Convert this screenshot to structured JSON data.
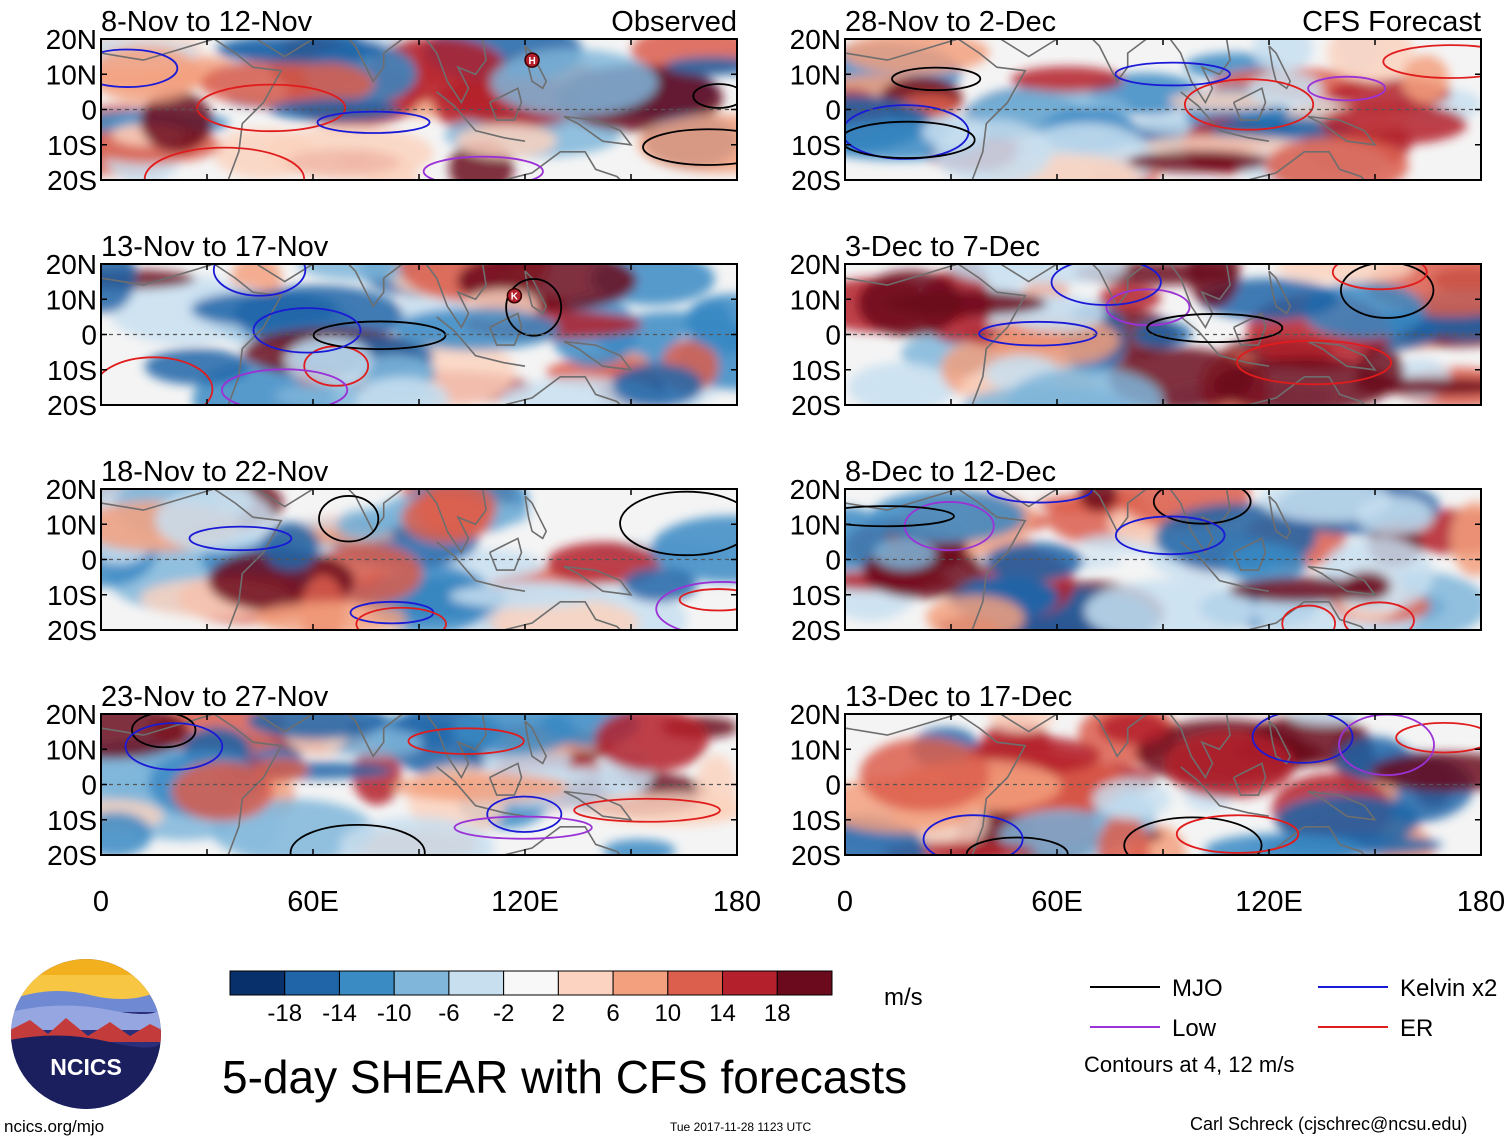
{
  "title": "5-day SHEAR with CFS forecasts",
  "units": "m/s",
  "logo_text": "NCICS",
  "credit_left": "ncics.org/mjo",
  "credit_date": "Tue 2017-11-28 1123 UTC",
  "credit_right": "Carl Schreck (cjschrec@ncsu.edu)",
  "contour_note": "Contours at 4, 12 m/s",
  "chart_data": {
    "type": "heatmap",
    "variable": "Vertical wind shear anomaly",
    "x_range": [
      0,
      180
    ],
    "y_range": [
      -20,
      20
    ],
    "xticks": [
      "0",
      "60E",
      "120E",
      "180"
    ],
    "yticks": [
      "20N",
      "10N",
      "0",
      "10S",
      "20S"
    ],
    "columns": [
      {
        "label": "Observed",
        "panels": [
          {
            "title": "8-Nov to 12-Nov"
          },
          {
            "title": "13-Nov to 17-Nov"
          },
          {
            "title": "18-Nov to 22-Nov"
          },
          {
            "title": "23-Nov to 27-Nov"
          }
        ]
      },
      {
        "label": "CFS Forecast",
        "panels": [
          {
            "title": "28-Nov to 2-Dec"
          },
          {
            "title": "3-Dec to 7-Dec"
          },
          {
            "title": "8-Dec to 12-Dec"
          },
          {
            "title": "13-Dec to 17-Dec"
          }
        ]
      }
    ],
    "colorbar": {
      "levels": [
        "-18",
        "-14",
        "-10",
        "-6",
        "-2",
        "2",
        "6",
        "10",
        "14",
        "18"
      ],
      "colors": [
        "#08306b",
        "#1f65a8",
        "#3a8ac4",
        "#7fb6da",
        "#c8dff0",
        "#f8f8f8",
        "#fbd3c0",
        "#f3a07e",
        "#dc5e4c",
        "#b4202c",
        "#6b0a1c"
      ]
    },
    "legend": [
      {
        "label": "MJO",
        "color": "#000000"
      },
      {
        "label": "Kelvin x2",
        "color": "#1a1ad6"
      },
      {
        "label": "Low",
        "color": "#9a32d6"
      },
      {
        "label": "ER",
        "color": "#e01c1c"
      }
    ],
    "storm_markers": [
      {
        "panel": "8-Nov to 12-Nov",
        "label": "H",
        "lon": 122,
        "lat": 14
      },
      {
        "panel": "13-Nov to 17-Nov",
        "label": "K",
        "lon": 117,
        "lat": 11
      }
    ]
  }
}
